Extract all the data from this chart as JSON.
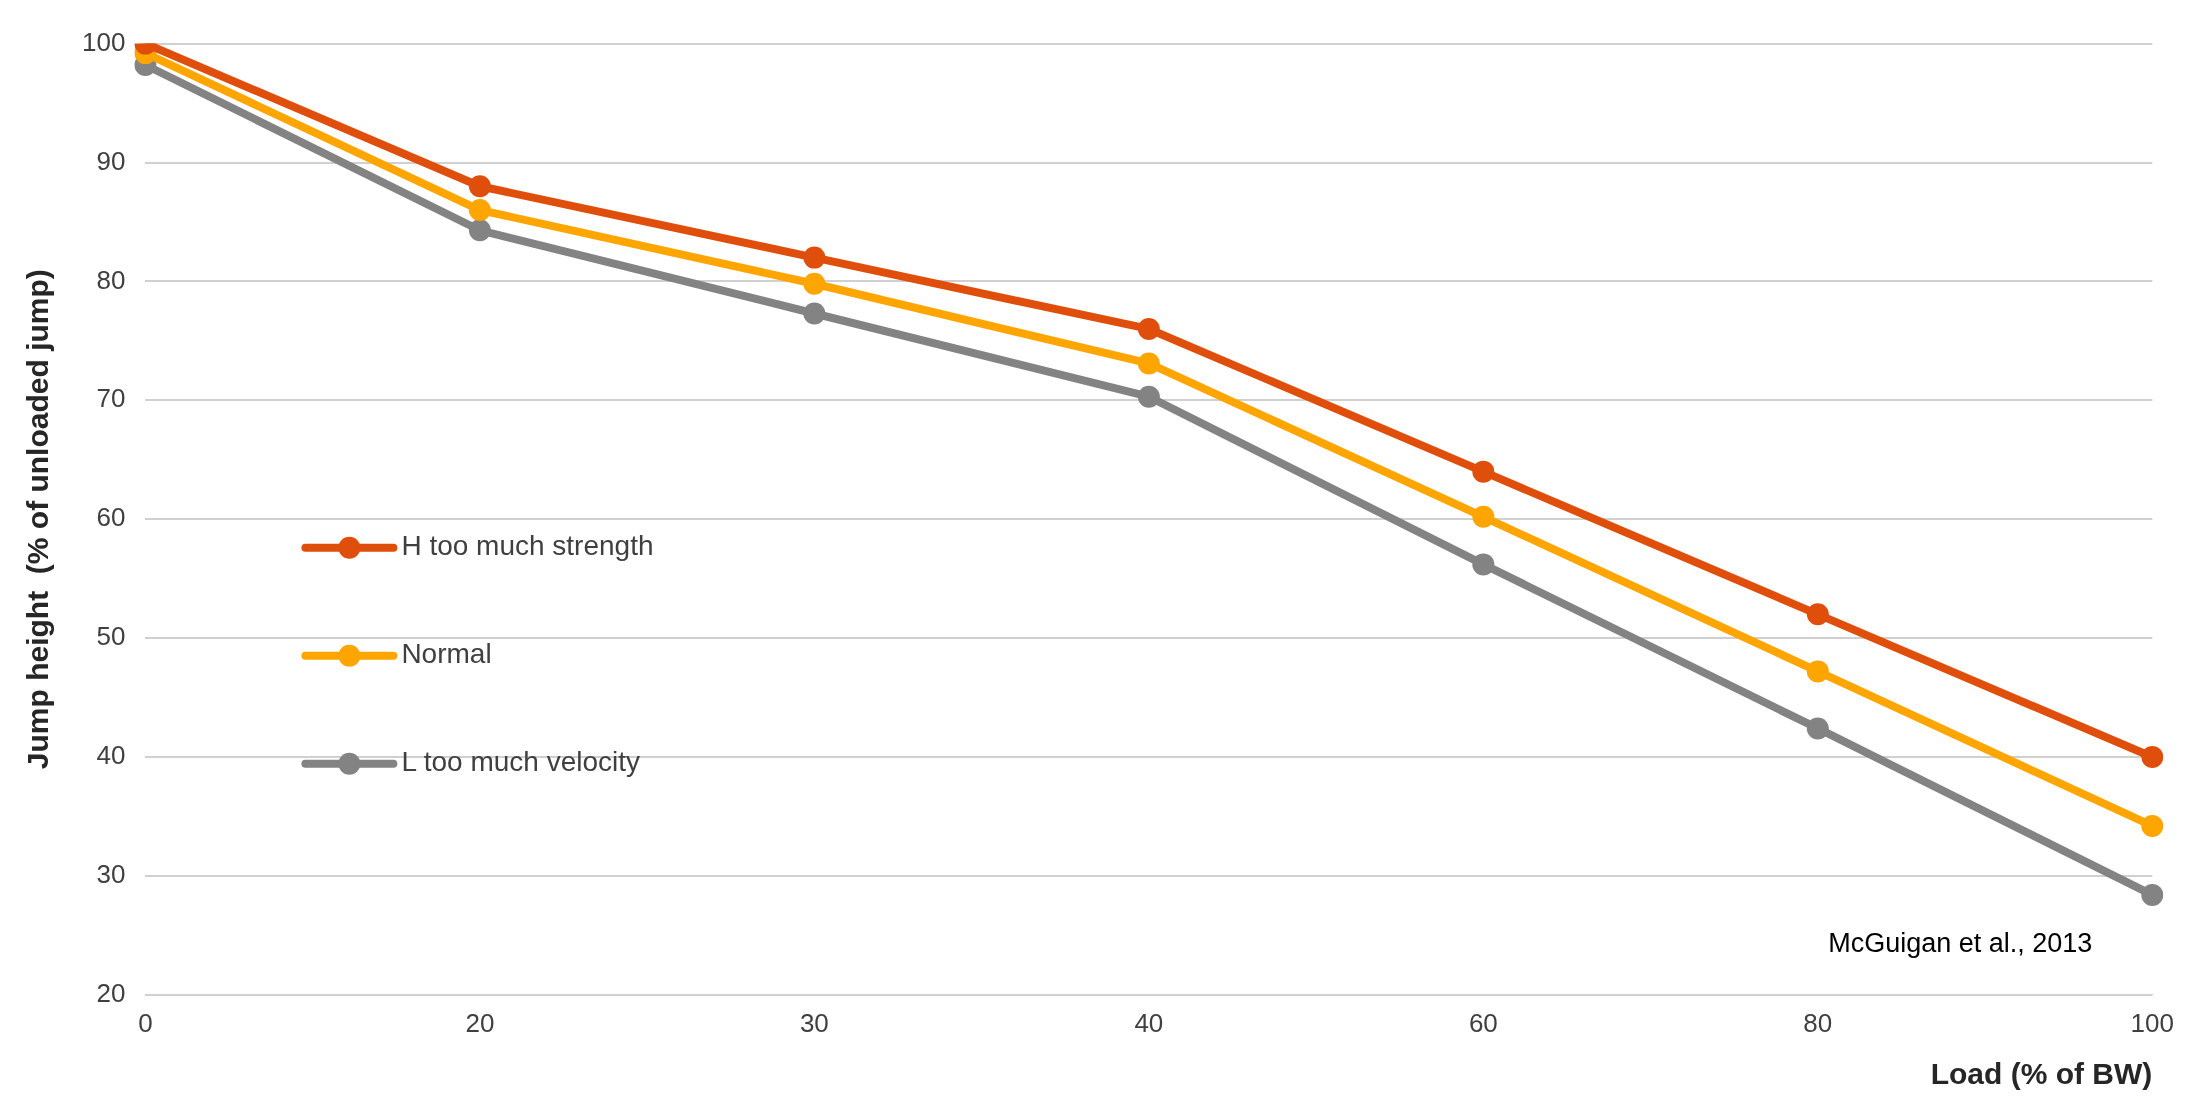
{
  "chart_data": {
    "type": "line",
    "xlabel": "Load (% of BW)",
    "ylabel": "Jump height  (% of unloaded jump)",
    "categories": [
      "0",
      "20",
      "30",
      "40",
      "60",
      "80",
      "100"
    ],
    "series": [
      {
        "name": "H too much strength",
        "color": "#e04e0c",
        "values": [
          100,
          88,
          82,
          76,
          64,
          52,
          40
        ]
      },
      {
        "name": "Normal",
        "color": "#ffa500",
        "values": [
          99.2,
          86,
          79.8,
          73.1,
          60.2,
          47.2,
          34.2
        ]
      },
      {
        "name": "L too much velocity",
        "color": "#838383",
        "values": [
          98.2,
          84.3,
          77.3,
          70.3,
          56.2,
          42.4,
          28.4
        ]
      }
    ],
    "ylim": [
      20,
      100
    ],
    "yticks": [
      20,
      30,
      40,
      50,
      60,
      70,
      80,
      90,
      100
    ],
    "grid": "y",
    "legend": "left",
    "marker": "circle",
    "line_style": "solid",
    "annotations": [
      "McGuigan et al., 2013"
    ]
  }
}
